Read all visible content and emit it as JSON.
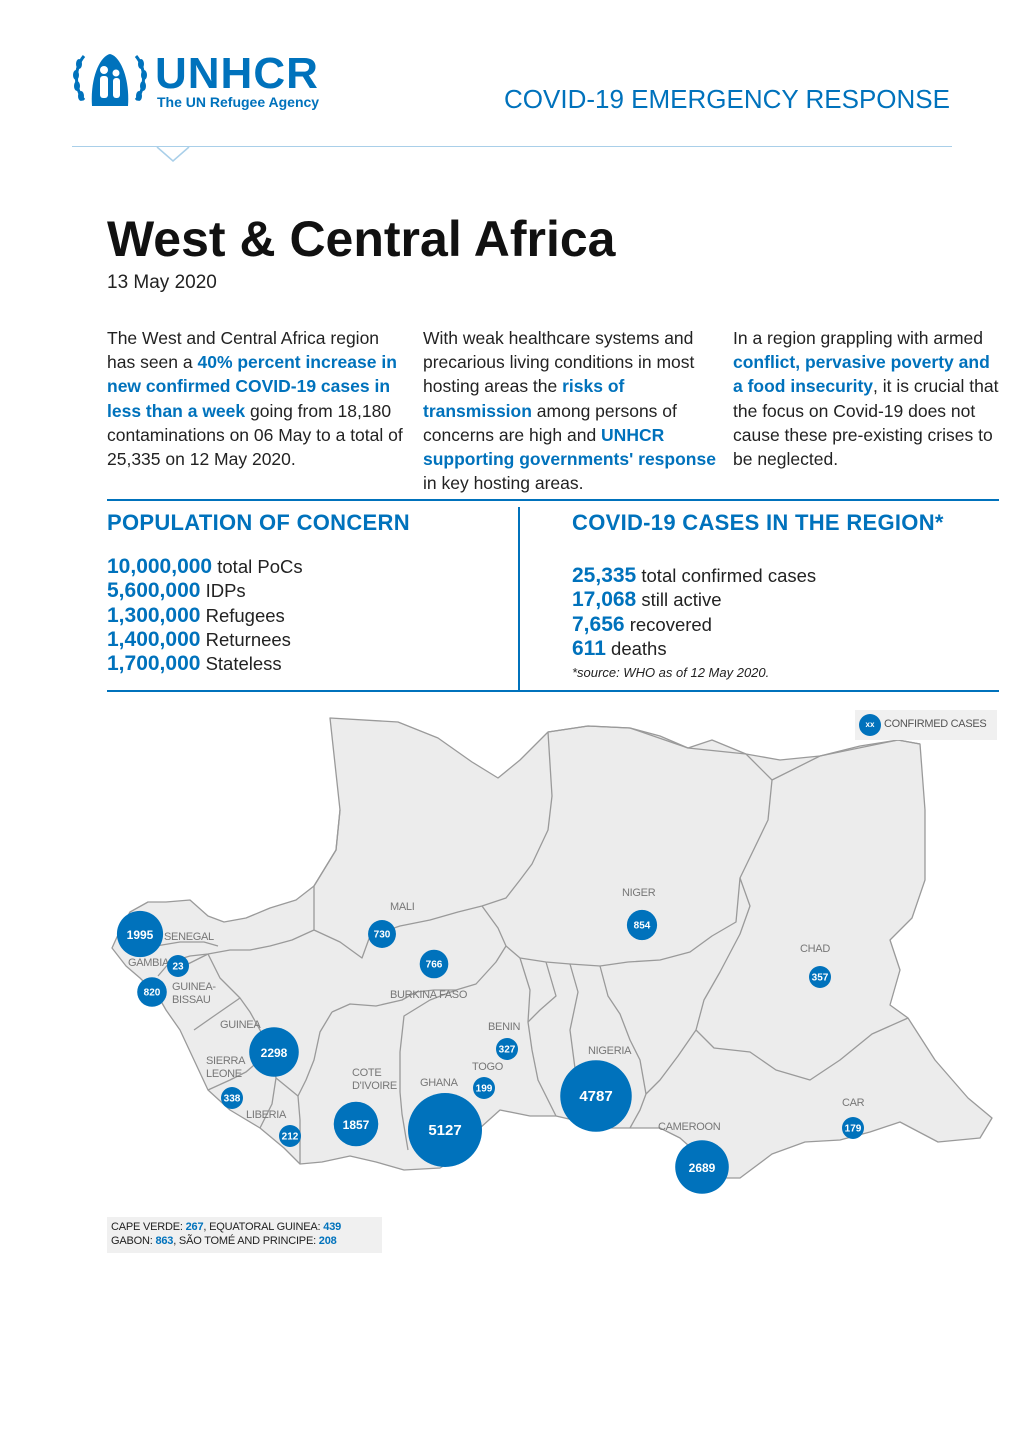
{
  "header": {
    "logo_text": "UNHCR",
    "logo_subtitle": "The UN Refugee Agency",
    "right_title": "COVID-19 EMERGENCY RESPONSE"
  },
  "title": "West & Central Africa",
  "date": "13 May 2020",
  "intro": {
    "col1": {
      "t1": "The West and Central Africa region has seen a ",
      "h1": "40% percent increase in new confirmed COVID-19 cases in less than a week",
      "t2": " going from 18,180 contaminations on 06 May to a total of 25,335 on 12 May 2020."
    },
    "col2": {
      "t1": "With weak healthcare systems and precarious living conditions in most hosting areas the ",
      "h1": "risks of transmission",
      "t2": " among persons of concerns are high and ",
      "h2": "UNHCR supporting governments' response",
      "t3": " in key hosting areas."
    },
    "col3": {
      "t1": "In a region grappling with armed ",
      "h1": "conflict, pervasive poverty and a food insecurity",
      "t2": ", it is crucial that the focus on Covid-19 does not cause these pre-existing crises to be neglected."
    }
  },
  "population": {
    "heading": "POPULATION OF CONCERN",
    "items": [
      {
        "value": "10,000,000",
        "label": " total PoCs"
      },
      {
        "value": "5,600,000",
        "label": " IDPs"
      },
      {
        "value": "1,300,000",
        "label": " Refugees"
      },
      {
        "value": "1,400,000",
        "label": " Returnees"
      },
      {
        "value": "1,700,000",
        "label": " Stateless"
      }
    ]
  },
  "cases": {
    "heading": "COVID-19 CASES IN THE REGION*",
    "items": [
      {
        "value": "25,335",
        "label": " total confirmed cases"
      },
      {
        "value": "17,068",
        "label": " still active"
      },
      {
        "value": "7,656",
        "label": " recovered"
      },
      {
        "value": "611",
        "label": " deaths"
      }
    ],
    "source": "*source: WHO as of 12 May 2020."
  },
  "map": {
    "legend_symbol": "xx",
    "legend_label": "CONFIRMED CASES",
    "countries": [
      {
        "name": "SENEGAL",
        "cases": "1995"
      },
      {
        "name": "GAMBIA",
        "cases": "23"
      },
      {
        "name": "GUINEA-BISSAU",
        "cases": "820"
      },
      {
        "name": "GUINEA",
        "cases": "2298"
      },
      {
        "name": "SIERRA LEONE",
        "cases": "338"
      },
      {
        "name": "LIBERIA",
        "cases": "212"
      },
      {
        "name": "COTE D'IVOIRE",
        "cases": "1857"
      },
      {
        "name": "MALI",
        "cases": "730"
      },
      {
        "name": "BURKINA FASO",
        "cases": "766"
      },
      {
        "name": "GHANA",
        "cases": "5127"
      },
      {
        "name": "TOGO",
        "cases": "199"
      },
      {
        "name": "BENIN",
        "cases": "327"
      },
      {
        "name": "NIGER",
        "cases": "854"
      },
      {
        "name": "NIGERIA",
        "cases": "4787"
      },
      {
        "name": "CHAD",
        "cases": "357"
      },
      {
        "name": "CAMEROON",
        "cases": "2689"
      },
      {
        "name": "CAR",
        "cases": "179"
      }
    ],
    "footnote": {
      "line1_a": "CAPE VERDE: ",
      "line1_b": "267",
      "line1_c": ", EQUATORAL GUINEA: ",
      "line1_d": "439",
      "line2_a": "GABON: ",
      "line2_b": "863",
      "line2_c": ", SÃO TOMÉ AND PRINCIPE: ",
      "line2_d": "208"
    }
  },
  "colors": {
    "accent": "#0072bc",
    "land": "#ececec",
    "border": "#9a9a9a"
  }
}
